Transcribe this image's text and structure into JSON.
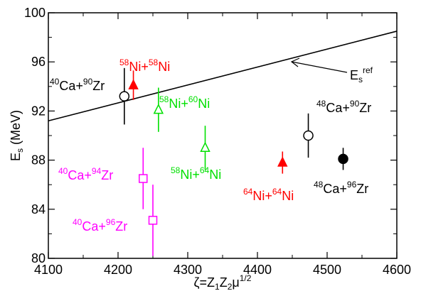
{
  "chart_data": {
    "type": "scatter",
    "title": "",
    "xlabel": {
      "base": "ζ=Z",
      "sub1": "1",
      "mid1": "Z",
      "sub2": "2",
      "mid2": "μ",
      "sup": "1/2"
    },
    "ylabel": {
      "base": "E",
      "sub": "s",
      "unit": " (MeV)"
    },
    "xlim": [
      4100,
      4600
    ],
    "ylim": [
      80,
      100
    ],
    "x_ticks": [
      4100,
      4200,
      4300,
      4400,
      4500,
      4600
    ],
    "y_ticks": [
      80,
      84,
      88,
      92,
      96,
      100
    ],
    "grid": false,
    "reference_line": {
      "x": [
        4100,
        4600
      ],
      "y": [
        91.2,
        98.5
      ],
      "label_base": "E",
      "label_sub": "s",
      "label_sup": "ref"
    },
    "colors": {
      "red": "#ff0000",
      "green": "#00e000",
      "black": "#000000",
      "magenta": "#ff00ff"
    },
    "points": [
      {
        "x": 4209,
        "y": 93.2,
        "err": 2.3,
        "marker": "circle-open",
        "color": "black",
        "label": [
          [
            "40",
            "Ca+"
          ],
          [
            "90",
            "Zr"
          ]
        ]
      },
      {
        "x": 4222,
        "y": 94.1,
        "err": 1.2,
        "marker": "triangle-filled",
        "color": "red",
        "label": [
          [
            "58",
            "Ni+"
          ],
          [
            "58",
            "Ni"
          ]
        ]
      },
      {
        "x": 4258,
        "y": 92.1,
        "err": 1.8,
        "marker": "triangle-open",
        "color": "green",
        "label": [
          [
            "58",
            "Ni+"
          ],
          [
            "60",
            "Ni"
          ]
        ]
      },
      {
        "x": 4325,
        "y": 89.0,
        "err": 1.8,
        "marker": "triangle-open",
        "color": "green",
        "label": [
          [
            "58",
            "Ni+"
          ],
          [
            "64",
            "Ni"
          ]
        ]
      },
      {
        "x": 4236,
        "y": 86.5,
        "err": 2.5,
        "marker": "square-open",
        "color": "magenta",
        "label": [
          [
            "40",
            "Ca+"
          ],
          [
            "94",
            "Zr"
          ]
        ]
      },
      {
        "x": 4250,
        "y": 83.1,
        "err": 2.9,
        "marker": "square-open",
        "color": "magenta",
        "label": [
          [
            "40",
            "Ca+"
          ],
          [
            "96",
            "Zr"
          ]
        ]
      },
      {
        "x": 4473,
        "y": 90.0,
        "err": 1.8,
        "marker": "circle-open",
        "color": "black",
        "label": [
          [
            "48",
            "Ca+"
          ],
          [
            "90",
            "Zr"
          ]
        ]
      },
      {
        "x": 4436,
        "y": 87.8,
        "err": 0.9,
        "marker": "triangle-filled",
        "color": "red",
        "label": [
          [
            "64",
            "Ni+"
          ],
          [
            "64",
            "Ni"
          ]
        ]
      },
      {
        "x": 4523,
        "y": 88.1,
        "err": 0.9,
        "marker": "circle-filled",
        "color": "black",
        "label": [
          [
            "48",
            "Ca+"
          ],
          [
            "96",
            "Zr"
          ]
        ]
      }
    ]
  }
}
